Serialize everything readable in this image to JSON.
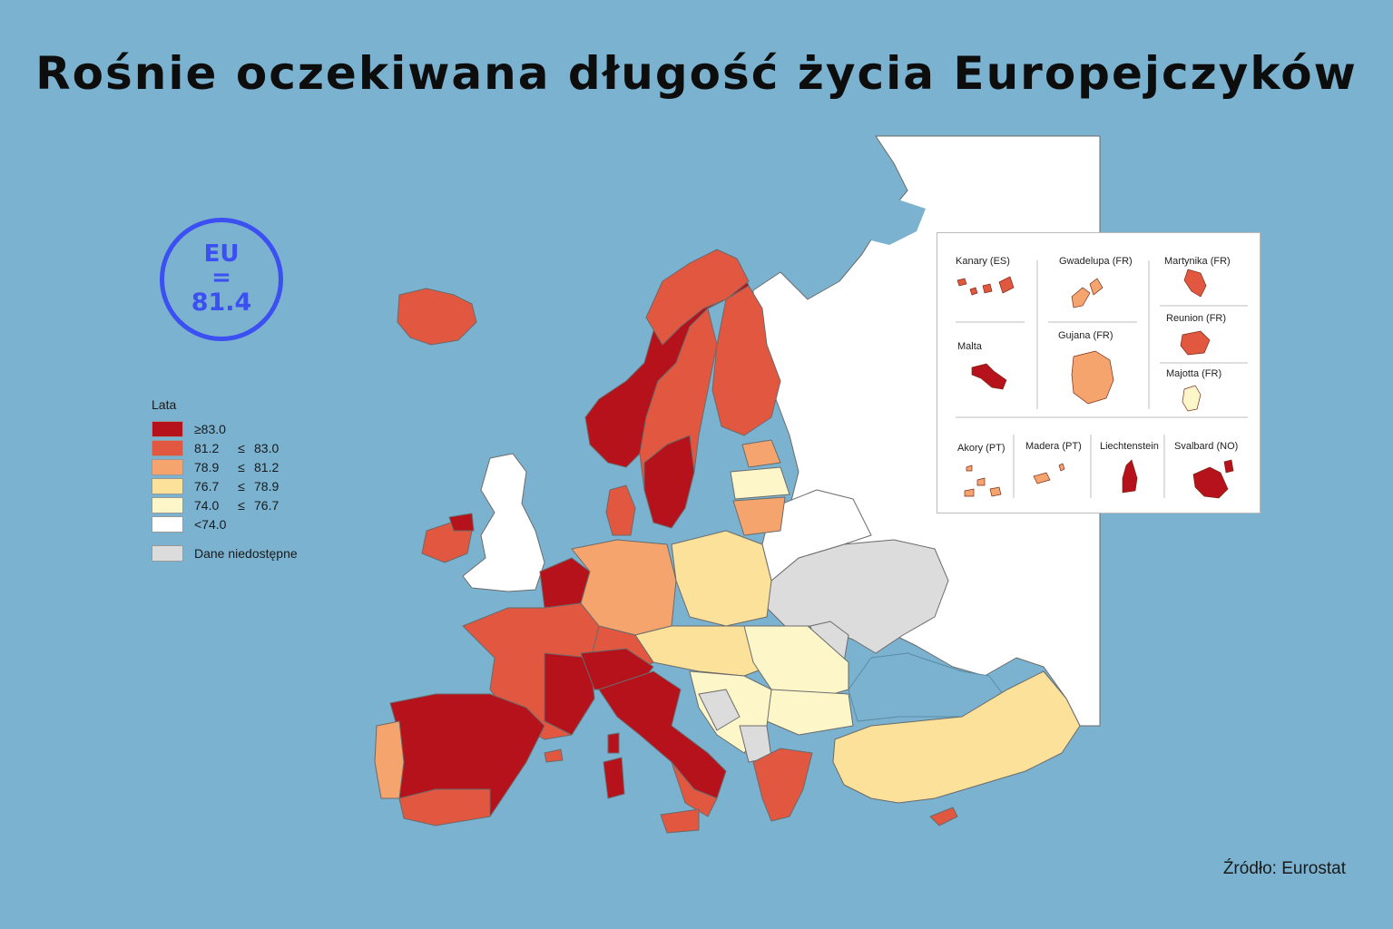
{
  "title": "Rośnie oczekiwana długość życia Europejczyków",
  "eu_badge": {
    "line1": "EU",
    "line2": "=",
    "line3": "81.4"
  },
  "legend": {
    "title": "Lata",
    "items": [
      {
        "lo": "≥83.0",
        "op": "",
        "hi": "",
        "color": "#b5121b"
      },
      {
        "lo": "81.2",
        "op": "≤",
        "hi": "83.0",
        "color": "#e2573f"
      },
      {
        "lo": "78.9",
        "op": "≤",
        "hi": "81.2",
        "color": "#f4a46c"
      },
      {
        "lo": "76.7",
        "op": "≤",
        "hi": "78.9",
        "color": "#fbe19a"
      },
      {
        "lo": "74.0",
        "op": "≤",
        "hi": "76.7",
        "color": "#fdf6c9"
      },
      {
        "lo": "<74.0",
        "op": "",
        "hi": "",
        "color": "#ffffff"
      }
    ],
    "na": {
      "label": "Dane niedostępne",
      "color": "#dcdcdc"
    }
  },
  "insets": [
    {
      "label": "Kanary  (ES)",
      "color": "#e2573f"
    },
    {
      "label": "Gwadelupa (FR)",
      "color": "#f4a46c"
    },
    {
      "label": "Martynika (FR)",
      "color": "#e2573f"
    },
    {
      "label": "Reunion (FR)",
      "color": "#e2573f"
    },
    {
      "label": "Malta",
      "color": "#b5121b"
    },
    {
      "label": "Gujana (FR)",
      "color": "#f4a46c"
    },
    {
      "label": "Majotta (FR)",
      "color": "#fdf6c9"
    },
    {
      "label": "Akory (PT)",
      "color": "#f4a46c"
    },
    {
      "label": "Madera (PT)",
      "color": "#f4a46c"
    },
    {
      "label": "Liechtenstein",
      "color": "#b5121b"
    },
    {
      "label": "Svalbard (NO)",
      "color": "#b5121b"
    }
  ],
  "source": "Źródło: Eurostat"
}
